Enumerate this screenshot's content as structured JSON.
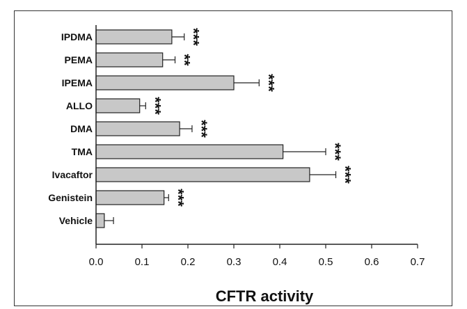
{
  "chart_data": {
    "type": "bar",
    "orientation": "horizontal",
    "categories": [
      "IPDMA",
      "PEMA",
      "IPEMA",
      "ALLO",
      "DMA",
      "TMA",
      "Ivacaftor",
      "Genistein",
      "Vehicle"
    ],
    "values": [
      0.165,
      0.145,
      0.3,
      0.095,
      0.182,
      0.407,
      0.465,
      0.148,
      0.018
    ],
    "errors": [
      0.027,
      0.027,
      0.055,
      0.013,
      0.027,
      0.093,
      0.057,
      0.01,
      0.02
    ],
    "significance": [
      "***",
      "**",
      "***",
      "***",
      "***",
      "***",
      "***",
      "***",
      ""
    ],
    "xlabel": "CFTR activity",
    "ylabel": "",
    "xlim": [
      0.0,
      0.7
    ],
    "x_ticks": [
      "0.0",
      "0.1",
      "0.2",
      "0.3",
      "0.4",
      "0.5",
      "0.6",
      "0.7"
    ],
    "grid": false,
    "colors": {
      "bar_fill": "#c8c8c8",
      "bar_stroke": "#222222",
      "axis": "#222222"
    }
  }
}
